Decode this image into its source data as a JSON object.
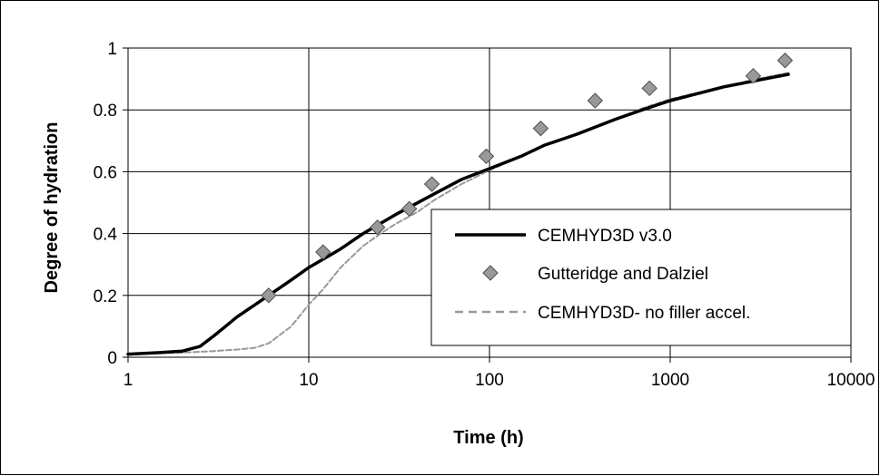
{
  "chart_data": {
    "type": "scatter",
    "xlabel": "Time (h)",
    "ylabel": "Degree of hydration",
    "x_scale": "log",
    "xlim": [
      1,
      10000
    ],
    "ylim": [
      0,
      1
    ],
    "x_ticks": [
      1,
      10,
      100,
      1000,
      10000
    ],
    "x_tick_labels": [
      "1",
      "10",
      "100",
      "1000",
      "10000"
    ],
    "y_ticks": [
      0,
      0.2,
      0.4,
      0.6,
      0.8,
      1
    ],
    "y_tick_labels": [
      "0",
      "0.2",
      "0.4",
      "0.6",
      "0.8",
      "1"
    ],
    "grid": true,
    "legend_position": "right",
    "series": [
      {
        "name": "CEMHYD3D v3.0",
        "style": "solid-line",
        "color": "#000000",
        "x": [
          1,
          1.5,
          2,
          2.5,
          3,
          4,
          6,
          8,
          10,
          15,
          20,
          30,
          50,
          70,
          100,
          150,
          200,
          300,
          500,
          700,
          1000,
          2000,
          3000,
          4500
        ],
        "y": [
          0.01,
          0.015,
          0.02,
          0.035,
          0.07,
          0.13,
          0.2,
          0.25,
          0.29,
          0.35,
          0.4,
          0.46,
          0.53,
          0.575,
          0.61,
          0.65,
          0.685,
          0.72,
          0.77,
          0.8,
          0.83,
          0.875,
          0.895,
          0.915
        ]
      },
      {
        "name": "Gutteridge and Dalziel",
        "style": "diamond-marker",
        "color": "#999999",
        "x": [
          6,
          12,
          24,
          36,
          48,
          96,
          192,
          384,
          768,
          2880,
          4320
        ],
        "y": [
          0.2,
          0.34,
          0.42,
          0.48,
          0.56,
          0.65,
          0.74,
          0.83,
          0.87,
          0.91,
          0.96
        ]
      },
      {
        "name": "CEMHYD3D- no filler accel.",
        "style": "dashed-line",
        "color": "#999999",
        "x": [
          1,
          2,
          3,
          4,
          5,
          6,
          8,
          10,
          12,
          15,
          20,
          25,
          30,
          40,
          50,
          70,
          100,
          150,
          200,
          300,
          500,
          700,
          1000,
          2000,
          3000,
          4500
        ],
        "y": [
          0.01,
          0.015,
          0.02,
          0.025,
          0.03,
          0.045,
          0.1,
          0.17,
          0.22,
          0.29,
          0.36,
          0.4,
          0.43,
          0.47,
          0.51,
          0.56,
          0.605,
          0.65,
          0.685,
          0.72,
          0.77,
          0.805,
          0.835,
          0.875,
          0.9,
          0.92
        ]
      }
    ]
  }
}
